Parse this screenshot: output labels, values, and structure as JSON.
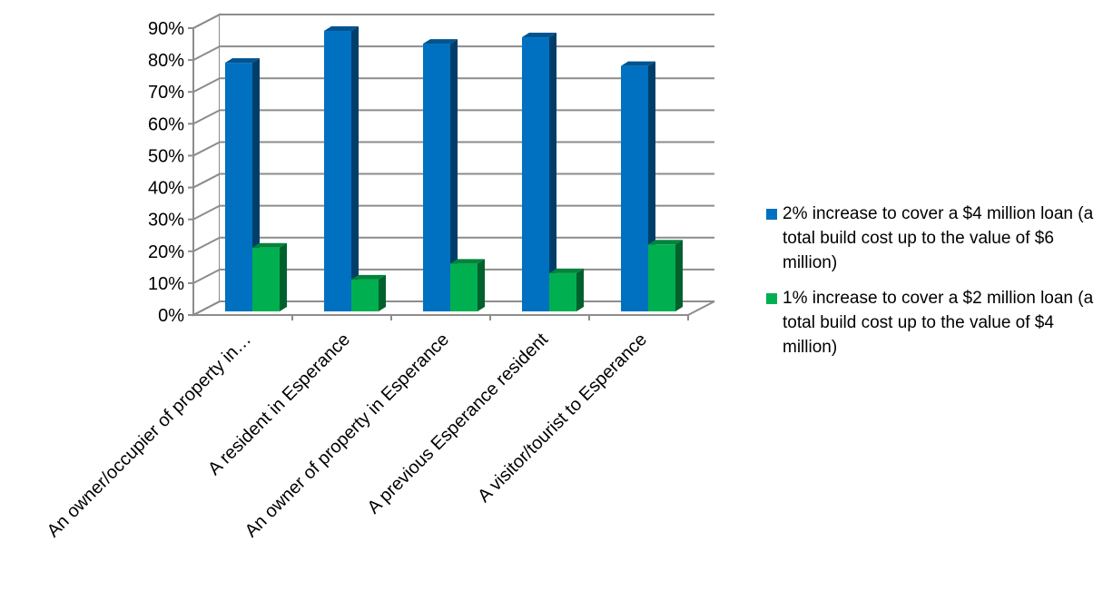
{
  "chart_data": {
    "type": "bar",
    "categories": [
      "An owner/occupier of property in…",
      "A resident in Esperance",
      "An owner of property in Esperance",
      "A previous Esperance resident",
      "A visitor/tourist to Esperance"
    ],
    "series": [
      {
        "name": "2% increase to cover a $4 million loan (a total build cost up to the value of $6 million)",
        "values": [
          78,
          88,
          84,
          86,
          77
        ],
        "color": "#0070C0"
      },
      {
        "name": "1% increase to cover a $2 million loan (a total build cost up to the value of $4 million)",
        "values": [
          20,
          10,
          15,
          12,
          21
        ],
        "color": "#00B050"
      }
    ],
    "ylim": [
      0,
      90
    ],
    "y_ticks": [
      "0%",
      "10%",
      "20%",
      "30%",
      "40%",
      "50%",
      "60%",
      "70%",
      "80%",
      "90%"
    ],
    "title": "",
    "xlabel": "",
    "ylabel": "",
    "grid": true,
    "legend_position": "right",
    "style": "3d-clustered-column"
  }
}
